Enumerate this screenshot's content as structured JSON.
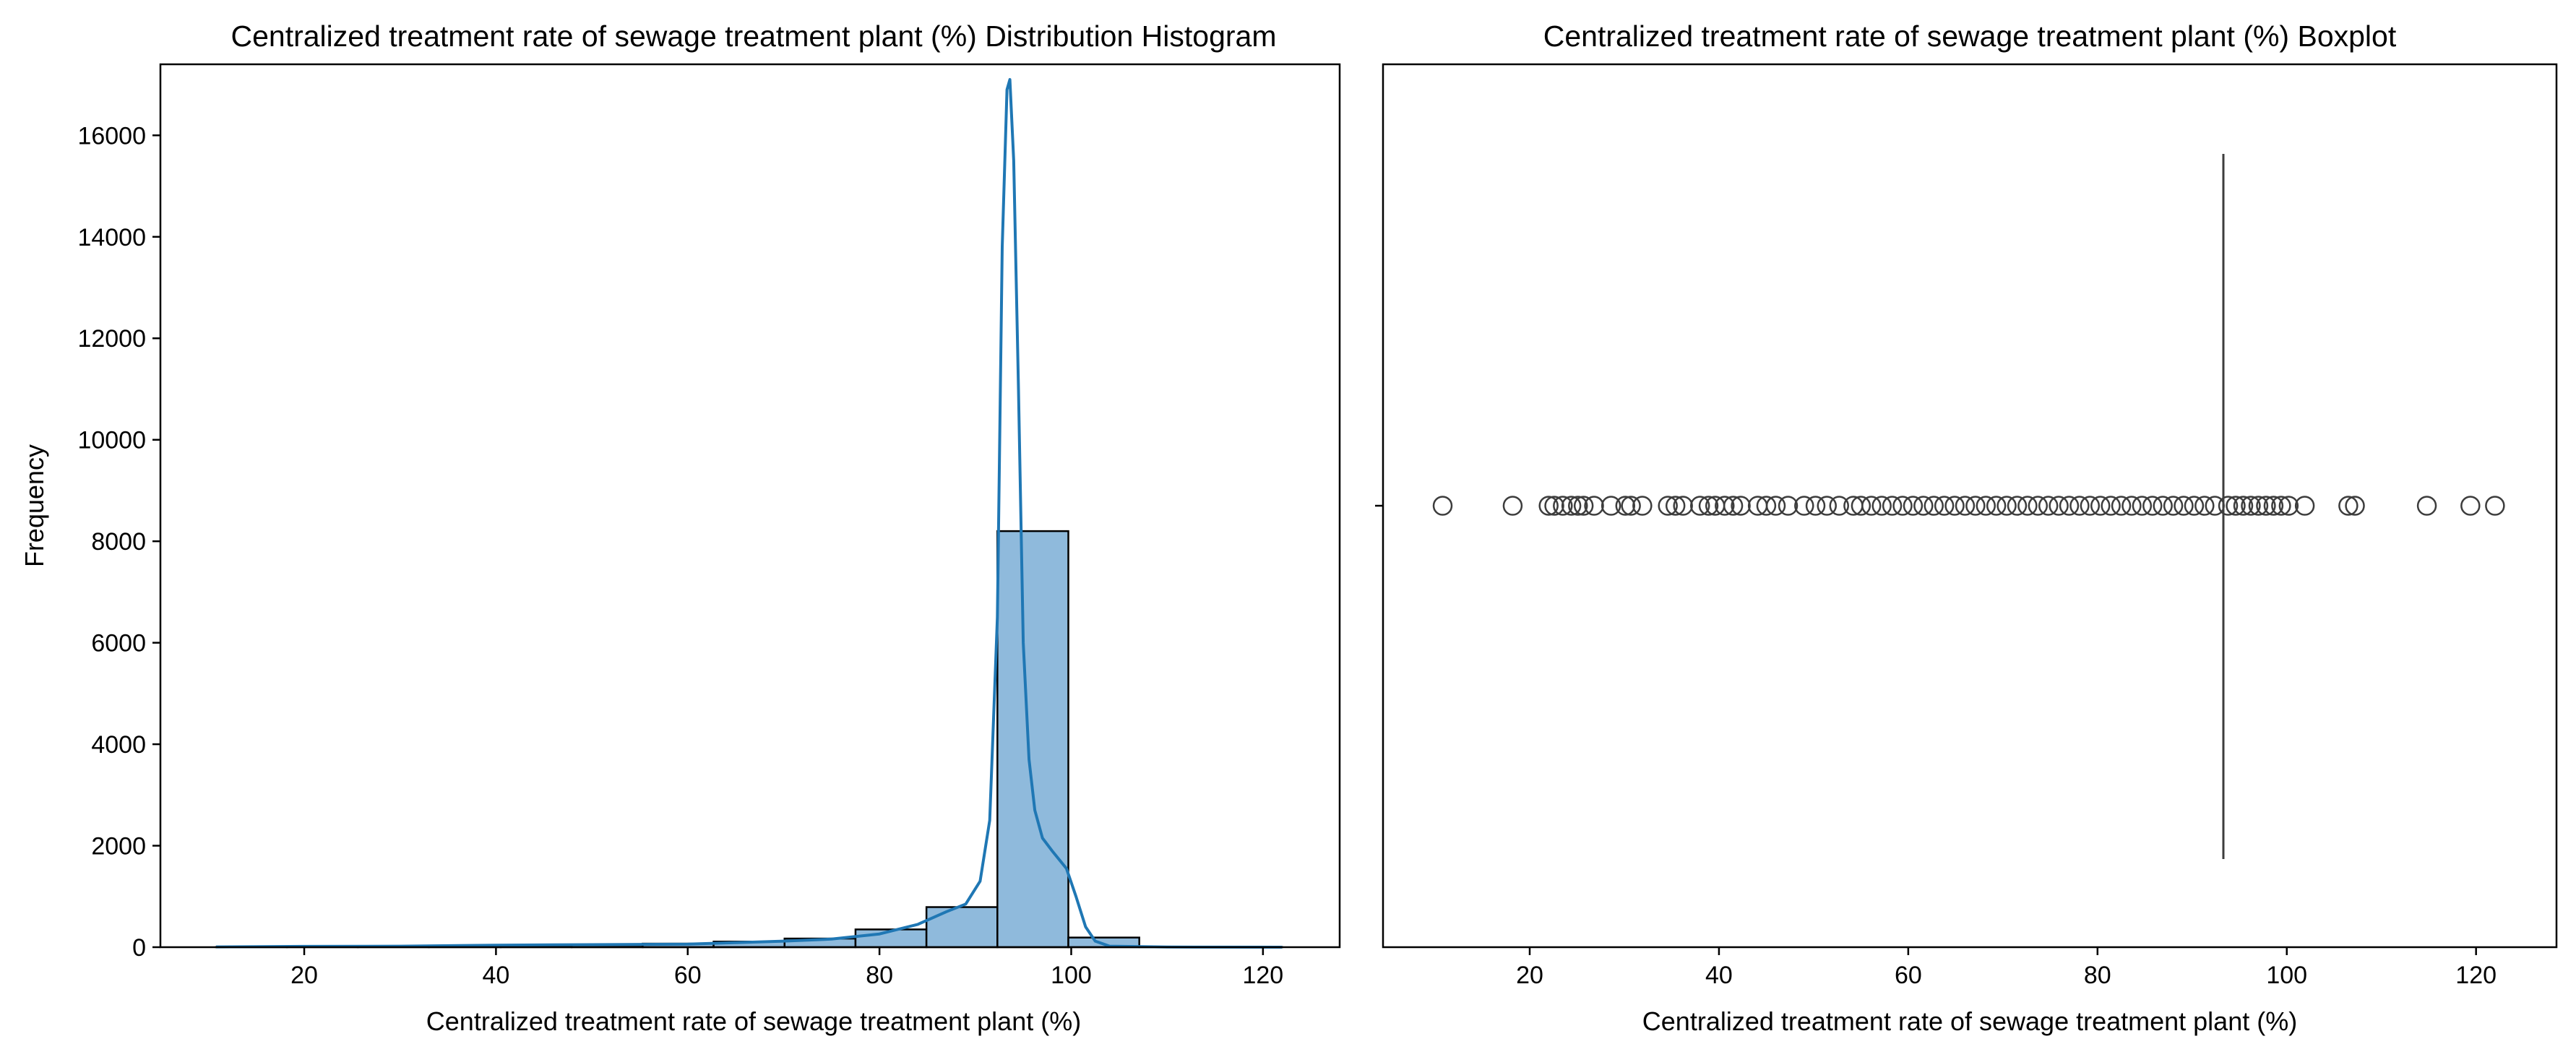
{
  "chart_data": [
    {
      "type": "bar",
      "subtype": "histogram with kde",
      "title": "Centralized treatment rate of sewage treatment plant (%) Distribution Histogram",
      "xlabel": "Centralized treatment rate of sewage treatment plant (%)",
      "ylabel": "Frequency",
      "xlim": [
        5,
        128
      ],
      "ylim": [
        0,
        17400
      ],
      "xticks": [
        20,
        40,
        60,
        80,
        100,
        120
      ],
      "yticks": [
        0,
        2000,
        4000,
        6000,
        8000,
        10000,
        12000,
        14000,
        16000
      ],
      "grid": false,
      "colors": {
        "bar_fill": "#8fbadc",
        "bar_edge": "#000000",
        "kde": "#1f77b4"
      },
      "bins": [
        {
          "x0": 10.8,
          "x1": 18.2,
          "count": 3
        },
        {
          "x0": 18.2,
          "x1": 25.6,
          "count": 8
        },
        {
          "x0": 25.6,
          "x1": 33.0,
          "count": 10
        },
        {
          "x0": 33.0,
          "x1": 40.5,
          "count": 18
        },
        {
          "x0": 40.5,
          "x1": 47.9,
          "count": 30
        },
        {
          "x0": 47.9,
          "x1": 55.3,
          "count": 40
        },
        {
          "x0": 55.3,
          "x1": 62.7,
          "count": 70
        },
        {
          "x0": 62.7,
          "x1": 70.1,
          "count": 110
        },
        {
          "x0": 70.1,
          "x1": 77.5,
          "count": 170
        },
        {
          "x0": 77.5,
          "x1": 84.9,
          "count": 350
        },
        {
          "x0": 84.9,
          "x1": 92.3,
          "count": 790
        },
        {
          "x0": 92.3,
          "x1": 99.7,
          "count": 8200
        },
        {
          "x0": 99.7,
          "x1": 107.1,
          "count": 190
        },
        {
          "x0": 107.1,
          "x1": 114.6,
          "count": 5
        },
        {
          "x0": 114.6,
          "x1": 122.0,
          "count": 3
        }
      ],
      "kde": {
        "x": [
          10.8,
          20,
          30,
          40,
          50,
          60,
          65,
          70,
          75,
          80,
          84,
          87,
          89,
          90.5,
          91.5,
          92.3,
          92.8,
          93.3,
          93.6,
          94.0,
          94.5,
          95.0,
          95.6,
          96.2,
          97,
          98,
          99.5,
          100.5,
          101.5,
          102.5,
          104,
          110,
          122
        ],
        "y": [
          5,
          15,
          20,
          40,
          50,
          60,
          90,
          120,
          160,
          260,
          450,
          700,
          850,
          1300,
          2500,
          6500,
          13800,
          16900,
          17100,
          15500,
          11000,
          6000,
          3700,
          2700,
          2150,
          1900,
          1550,
          1000,
          400,
          120,
          20,
          3,
          0
        ]
      }
    },
    {
      "type": "boxplot",
      "title": "Centralized treatment rate of sewage treatment plant (%) Boxplot",
      "xlabel": "Centralized treatment rate of sewage treatment plant (%)",
      "xlim": [
        4.5,
        128.5
      ],
      "xticks": [
        20,
        40,
        60,
        80,
        100,
        120
      ],
      "grid": false,
      "colors": {
        "box": "#3d3d3d",
        "outlier_edge": "#3d3d3d"
      },
      "box": {
        "q1": 93.3,
        "median": 93.3,
        "q3": 93.3,
        "whisker_low": 93.3,
        "whisker_high": 93.3
      },
      "outliers": [
        10.8,
        18.2,
        22.0,
        22.6,
        23.5,
        24.4,
        25.1,
        25.7,
        26.8,
        28.6,
        30.1,
        30.7,
        31.9,
        34.6,
        35.4,
        36.2,
        38.0,
        38.9,
        39.6,
        40.6,
        41.5,
        42.3,
        44.1,
        45.0,
        46.0,
        47.3,
        49.0,
        50.2,
        51.4,
        52.7,
        54.2,
        55.0,
        56.1,
        57.2,
        58.3,
        59.4,
        60.5,
        61.6,
        62.7,
        63.8,
        64.9,
        66.0,
        67.1,
        68.2,
        69.3,
        70.4,
        71.5,
        72.6,
        73.7,
        74.8,
        75.9,
        77.0,
        78.1,
        79.2,
        80.3,
        81.4,
        82.5,
        83.6,
        84.7,
        85.8,
        86.9,
        88.0,
        89.1,
        90.2,
        91.3,
        92.4,
        93.8,
        94.6,
        95.4,
        96.2,
        97.0,
        97.8,
        98.6,
        99.4,
        100.2,
        101.9,
        106.5,
        107.2,
        114.8,
        119.4,
        122.0
      ]
    }
  ]
}
